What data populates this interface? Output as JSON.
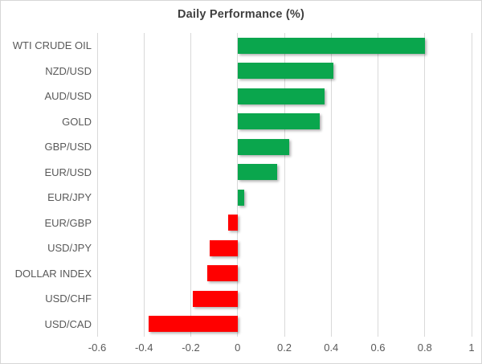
{
  "chart_data": {
    "type": "bar",
    "orientation": "horizontal",
    "title": "Daily Performance (%)",
    "xlabel": "",
    "ylabel": "",
    "categories": [
      "WTI CRUDE OIL",
      "NZD/USD",
      "AUD/USD",
      "GOLD",
      "GBP/USD",
      "EUR/USD",
      "EUR/JPY",
      "EUR/GBP",
      "USD/JPY",
      "DOLLAR INDEX",
      "USD/CHF",
      "USD/CAD"
    ],
    "values": [
      0.8,
      0.41,
      0.37,
      0.35,
      0.22,
      0.17,
      0.03,
      -0.04,
      -0.12,
      -0.13,
      -0.19,
      -0.38
    ],
    "xlim": [
      -0.6,
      1.0
    ],
    "xticks": [
      -0.6,
      -0.4,
      -0.2,
      0,
      0.2,
      0.4,
      0.6,
      0.8,
      1
    ],
    "xtick_labels": [
      "-0.6",
      "-0.4",
      "-0.2",
      "0",
      "0.2",
      "0.4",
      "0.6",
      "0.8",
      "1"
    ],
    "grid": true,
    "legend": false,
    "colors": {
      "positive": "#0aa64d",
      "negative": "#ff0000",
      "gridline": "#d9d9d9",
      "title_text": "#3f3f3f",
      "axis_text": "#595959"
    }
  }
}
